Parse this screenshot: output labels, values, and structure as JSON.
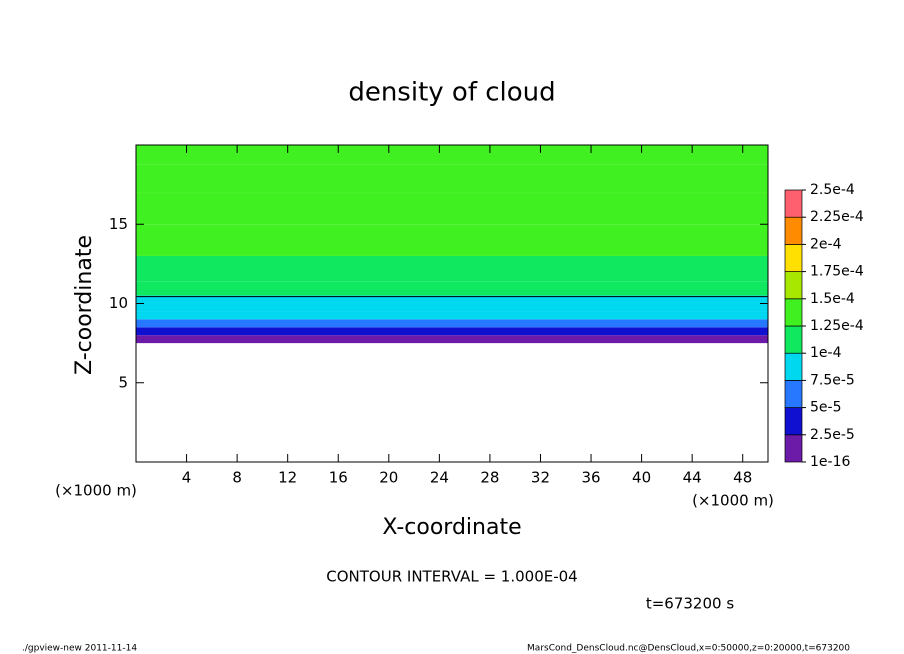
{
  "chart_data": {
    "type": "contour",
    "title": "density of cloud",
    "x_label": "X-coordinate",
    "y_label": "Z-coordinate",
    "x_unit": "(×1000 m)",
    "y_unit": "(×1000 m)",
    "xlim": [
      0,
      50
    ],
    "xticks": [
      4,
      8,
      12,
      16,
      20,
      24,
      28,
      32,
      36,
      40,
      44,
      48
    ],
    "ylim": [
      0,
      20
    ],
    "yticks": [
      5,
      10,
      15
    ],
    "z": [
      7.75,
      8.25,
      8.75,
      9.25,
      9.75,
      10.25,
      10.75,
      12,
      14,
      16,
      18,
      19.5
    ],
    "values": [
      1e-05,
      3.5e-05,
      6e-05,
      8e-05,
      8.8e-05,
      9.7e-05,
      0.000105,
      0.000118,
      0.00013,
      0.00013,
      0.000132,
      0.000128
    ],
    "color_levels": [
      {
        "value": 1e-16,
        "label": "1e-16"
      },
      {
        "value": 2.5e-05,
        "label": "2.5e-5"
      },
      {
        "value": 5e-05,
        "label": "5e-5"
      },
      {
        "value": 7.5e-05,
        "label": "7.5e-5"
      },
      {
        "value": 0.0001,
        "label": "1e-4"
      },
      {
        "value": 0.000125,
        "label": "1.25e-4"
      },
      {
        "value": 0.00015,
        "label": "1.5e-4"
      },
      {
        "value": 0.000175,
        "label": "1.75e-4"
      },
      {
        "value": 0.0002,
        "label": "2e-4"
      },
      {
        "value": 0.000225,
        "label": "2.25e-4"
      },
      {
        "value": 0.00025,
        "label": "2.5e-4"
      }
    ],
    "colors": [
      "#6c1aa8",
      "#1010d0",
      "#2878ff",
      "#00d8f0",
      "#10e860",
      "#40f020",
      "#a8e800",
      "#ffe000",
      "#ff8c00",
      "#ff6070"
    ],
    "contour_interval": 0.0001,
    "contour_interval_text": "CONTOUR INTERVAL = 1.000E-04",
    "time_text": "t=673200 s",
    "footer_left": "./gpview-new  2011-11-14",
    "footer_right": "MarsCond_DensCloud.nc@DensCloud,x=0:50000,z=0:20000,t=673200"
  }
}
